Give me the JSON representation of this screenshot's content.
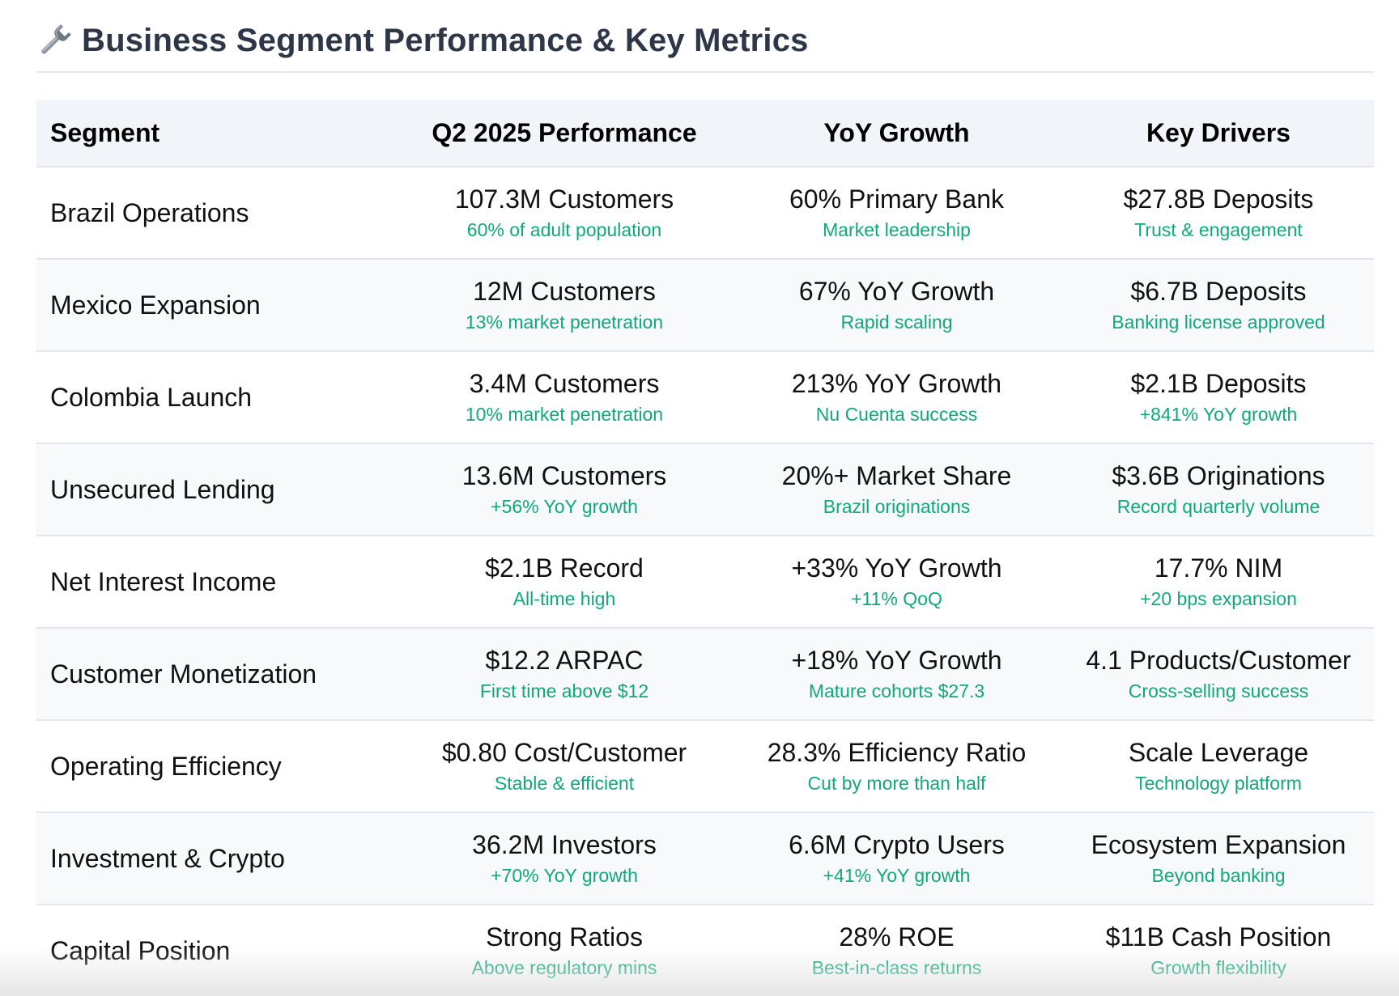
{
  "header": {
    "title": "Business Segment Performance & Key Metrics",
    "icon": "wrench-icon"
  },
  "colors": {
    "title": "#2d3748",
    "accent_green": "#12a87a",
    "header_bg": "#f1f4f8",
    "row_alt_bg": "#f7f9fb"
  },
  "table": {
    "columns": [
      "Segment",
      "Q2 2025 Performance",
      "YoY Growth",
      "Key Drivers"
    ],
    "rows": [
      {
        "segment": "Brazil Operations",
        "performance": {
          "main": "107.3M Customers",
          "sub": "60% of adult population"
        },
        "growth": {
          "main": "60% Primary Bank",
          "sub": "Market leadership"
        },
        "drivers": {
          "main": "$27.8B Deposits",
          "sub": "Trust & engagement"
        }
      },
      {
        "segment": "Mexico Expansion",
        "performance": {
          "main": "12M Customers",
          "sub": "13% market penetration"
        },
        "growth": {
          "main": "67% YoY Growth",
          "sub": "Rapid scaling"
        },
        "drivers": {
          "main": "$6.7B Deposits",
          "sub": "Banking license approved"
        }
      },
      {
        "segment": "Colombia Launch",
        "performance": {
          "main": "3.4M Customers",
          "sub": "10% market penetration"
        },
        "growth": {
          "main": "213% YoY Growth",
          "sub": "Nu Cuenta success"
        },
        "drivers": {
          "main": "$2.1B Deposits",
          "sub": "+841% YoY growth"
        }
      },
      {
        "segment": "Unsecured Lending",
        "performance": {
          "main": "13.6M Customers",
          "sub": "+56% YoY growth"
        },
        "growth": {
          "main": "20%+ Market Share",
          "sub": "Brazil originations"
        },
        "drivers": {
          "main": "$3.6B Originations",
          "sub": "Record quarterly volume"
        }
      },
      {
        "segment": "Net Interest Income",
        "performance": {
          "main": "$2.1B Record",
          "sub": "All-time high"
        },
        "growth": {
          "main": "+33% YoY Growth",
          "sub": "+11% QoQ"
        },
        "drivers": {
          "main": "17.7% NIM",
          "sub": "+20 bps expansion"
        }
      },
      {
        "segment": "Customer Monetization",
        "performance": {
          "main": "$12.2 ARPAC",
          "sub": "First time above $12"
        },
        "growth": {
          "main": "+18% YoY Growth",
          "sub": "Mature cohorts $27.3"
        },
        "drivers": {
          "main": "4.1 Products/Customer",
          "sub": "Cross-selling success"
        }
      },
      {
        "segment": "Operating Efficiency",
        "performance": {
          "main": "$0.80 Cost/Customer",
          "sub": "Stable & efficient"
        },
        "growth": {
          "main": "28.3% Efficiency Ratio",
          "sub": "Cut by more than half"
        },
        "drivers": {
          "main": "Scale Leverage",
          "sub": "Technology platform"
        }
      },
      {
        "segment": "Investment & Crypto",
        "performance": {
          "main": "36.2M Investors",
          "sub": "+70% YoY growth"
        },
        "growth": {
          "main": "6.6M Crypto Users",
          "sub": "+41% YoY growth"
        },
        "drivers": {
          "main": "Ecosystem Expansion",
          "sub": "Beyond banking"
        }
      },
      {
        "segment": "Capital Position",
        "performance": {
          "main": "Strong Ratios",
          "sub": "Above regulatory mins"
        },
        "growth": {
          "main": "28% ROE",
          "sub": "Best-in-class returns"
        },
        "drivers": {
          "main": "$11B Cash Position",
          "sub": "Growth flexibility"
        }
      }
    ]
  }
}
